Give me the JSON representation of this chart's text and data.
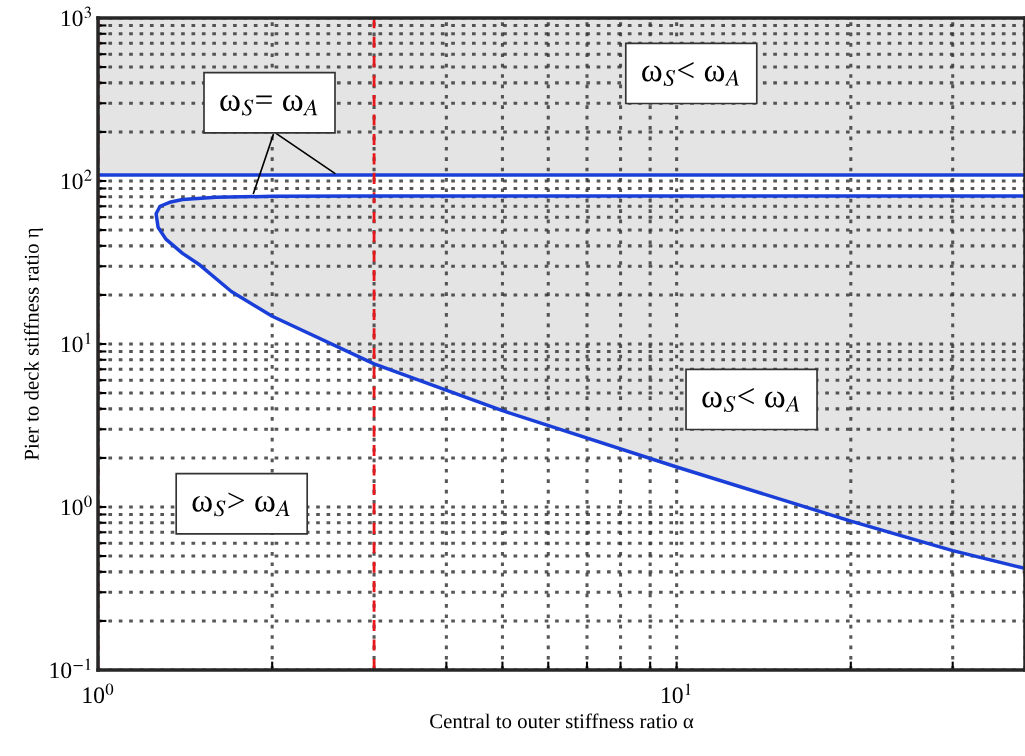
{
  "chart_data": {
    "type": "area",
    "xlabel": "Central to outer stiffness ratio α",
    "ylabel": "Pier to deck stiffness ratio η",
    "log": "xy",
    "xlim": [
      1,
      40
    ],
    "ylim": [
      0.1,
      1000
    ],
    "xticks": [
      {
        "value": 1,
        "label": "10$^{0}$"
      },
      {
        "value": 10,
        "label": "10$^{1}$"
      }
    ],
    "yticks": [
      {
        "value": 0.1,
        "label": "10$^{−1}$"
      },
      {
        "value": 1,
        "label": "10$^{0}$"
      },
      {
        "value": 10,
        "label": "10$^{1}$"
      },
      {
        "value": 100,
        "label": "10$^{2}$"
      },
      {
        "value": 1000,
        "label": "10$^{3}$"
      }
    ],
    "grid": true,
    "line_style": "solid",
    "marker": "none",
    "series": [
      {
        "color": "#1a3fd9",
        "x": [
          40,
          10,
          3,
          2,
          1.6,
          1.4,
          1.33,
          1.28,
          1.26,
          1.27,
          1.31,
          1.4,
          1.5,
          1.7,
          2,
          3,
          5,
          10,
          20,
          30,
          40
        ],
        "values": [
          81,
          81,
          81,
          80.5,
          79.5,
          77,
          74,
          70,
          63,
          52,
          44,
          36,
          30.5,
          21,
          14.8,
          7.55,
          3.9,
          1.76,
          0.82,
          0.54,
          0.42
        ]
      }
    ],
    "ref_lines": [
      {
        "axis": "y",
        "value": 109,
        "color": "#1a3fd9",
        "line_style": "solid"
      },
      {
        "axis": "x",
        "value": 1,
        "color": "#e8161b",
        "line_style": "dashed"
      },
      {
        "axis": "x",
        "value": 3,
        "color": "#e8161b",
        "line_style": "dashed"
      }
    ],
    "bands": [
      {
        "axis": "y",
        "from": 109,
        "to": 1000,
        "color": "#e4e4e4"
      }
    ],
    "annotations": [
      {
        "text": "ω$_{S}$= ω$_{A}$",
        "x": 1.85,
        "y": 81
      },
      "ω$_{S}$< ω$_{A}$",
      "ω$_{S}$< ω$_{A}$",
      "ω$_{S}$> ω$_{A}$"
    ]
  }
}
